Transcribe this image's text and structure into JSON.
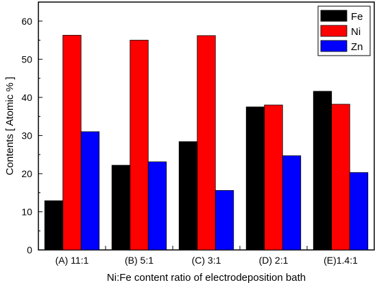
{
  "chart_data": {
    "type": "bar",
    "categories": [
      "(A) 11:1",
      "(B) 5:1",
      "(C) 3:1",
      "(D) 2:1",
      "(E)1.4:1"
    ],
    "series": [
      {
        "name": "Fe",
        "color": "#000000",
        "values": [
          12.9,
          22.2,
          28.4,
          37.5,
          41.6
        ]
      },
      {
        "name": "Ni",
        "color": "#ff0000",
        "values": [
          56.3,
          55.0,
          56.2,
          38.0,
          38.2
        ]
      },
      {
        "name": "Zn",
        "color": "#0000ff",
        "values": [
          31.0,
          23.1,
          15.6,
          24.7,
          20.3
        ]
      }
    ],
    "title": "",
    "xlabel": "Ni:Fe  content ratio of electrodeposition bath",
    "ylabel": "Contents [ Atomic % ]",
    "ylim": [
      0,
      65
    ],
    "yticks": [
      0,
      10,
      20,
      30,
      40,
      50,
      60
    ],
    "grid": false,
    "legend": "top-right"
  }
}
